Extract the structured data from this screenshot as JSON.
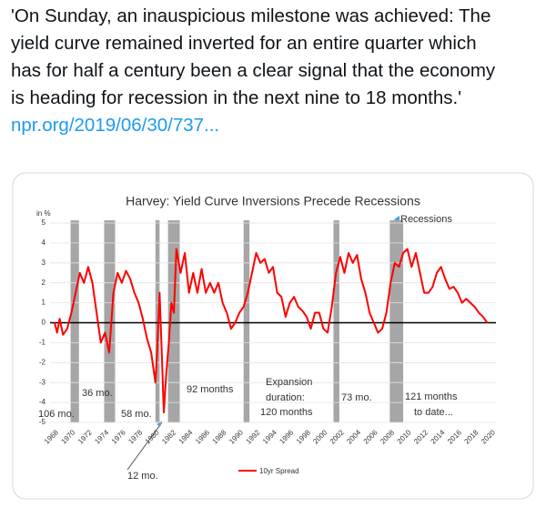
{
  "tweet": {
    "text_lines": [
      "'On Sunday, an inauspicious milestone was achieved: The",
      "yield curve remained inverted for an entire quarter which",
      "has for half a century been a clear signal that the economy",
      "is heading for recession in the next nine to 18 months.'"
    ],
    "link": "npr.org/2019/06/30/737..."
  },
  "chart_data": {
    "type": "line",
    "title": "Harvey: Yield Curve Inversions Precede Recessions",
    "y_label": "in %",
    "x": [
      1968,
      1968.3,
      1968.6,
      1969,
      1969.5,
      1970,
      1970.5,
      1971,
      1971.5,
      1972,
      1972.5,
      1973,
      1973.5,
      1974,
      1974.5,
      1975,
      1975.5,
      1976,
      1976.5,
      1977,
      1977.5,
      1978,
      1978.5,
      1979,
      1979.5,
      1980,
      1980.2,
      1980.5,
      1980.8,
      1981,
      1981.3,
      1981.6,
      1981.9,
      1982.2,
      1982.5,
      1983,
      1983.5,
      1984,
      1984.5,
      1985,
      1985.5,
      1986,
      1986.5,
      1987,
      1987.5,
      1988,
      1988.5,
      1989,
      1989.5,
      1990,
      1990.5,
      1991,
      1991.5,
      1992,
      1992.5,
      1993,
      1993.5,
      1994,
      1994.5,
      1995,
      1995.5,
      1996,
      1996.5,
      1997,
      1997.5,
      1998,
      1998.5,
      1999,
      1999.5,
      2000,
      2000.5,
      2001,
      2001.5,
      2002,
      2002.5,
      2003,
      2003.5,
      2004,
      2004.5,
      2005,
      2005.5,
      2006,
      2006.5,
      2007,
      2007.5,
      2008,
      2008.5,
      2009,
      2009.5,
      2010,
      2010.5,
      2011,
      2011.5,
      2012,
      2012.5,
      2013,
      2013.5,
      2014,
      2014.5,
      2015,
      2015.5,
      2016,
      2016.5,
      2017,
      2017.5,
      2018,
      2018.5,
      2019,
      2019.5
    ],
    "series": [
      {
        "name": "10yr Spread",
        "color": "#ff0000",
        "values": [
          0.0,
          -0.5,
          0.2,
          -0.6,
          -0.3,
          0.5,
          1.5,
          2.5,
          2.0,
          2.8,
          2.0,
          0.5,
          -1.0,
          -0.5,
          -1.5,
          1.5,
          2.5,
          2.0,
          2.6,
          2.2,
          1.5,
          1.0,
          0.2,
          -0.8,
          -1.5,
          -3.0,
          -1.5,
          1.5,
          -2.0,
          -4.5,
          -2.5,
          -1.0,
          1.0,
          0.5,
          3.7,
          2.5,
          3.5,
          1.5,
          2.5,
          1.5,
          2.7,
          1.5,
          2.0,
          1.5,
          2.0,
          1.0,
          0.5,
          -0.3,
          0.0,
          0.5,
          0.8,
          1.5,
          2.5,
          3.5,
          3.0,
          3.2,
          2.5,
          2.8,
          1.5,
          1.3,
          0.3,
          1.0,
          1.3,
          0.8,
          0.6,
          0.3,
          -0.3,
          0.5,
          0.5,
          -0.3,
          -0.5,
          0.8,
          2.5,
          3.3,
          2.5,
          3.5,
          3.0,
          3.4,
          2.2,
          1.5,
          0.5,
          0.0,
          -0.5,
          -0.3,
          0.5,
          2.0,
          3.0,
          2.8,
          3.5,
          3.7,
          2.8,
          3.5,
          2.5,
          1.5,
          1.5,
          1.8,
          2.5,
          2.8,
          2.2,
          1.7,
          1.8,
          1.5,
          1.0,
          1.2,
          1.0,
          0.8,
          0.5,
          0.3,
          0.0
        ]
      }
    ],
    "recessions": [
      [
        1969.9,
        1970.9
      ],
      [
        1973.9,
        1975.2
      ],
      [
        1980.0,
        1980.5
      ],
      [
        1981.5,
        1982.9
      ],
      [
        1990.5,
        1991.2
      ],
      [
        2001.2,
        2001.9
      ],
      [
        2007.9,
        2009.5
      ]
    ],
    "recession_label": "Recessions",
    "annotations": [
      "106 mo.",
      "36 mo.",
      "58 mo.",
      "12 mo.",
      "92 months",
      "Expansion",
      "duration:",
      "120 months",
      "73 mo.",
      "121 months",
      "to date..."
    ],
    "xlim": [
      1968,
      2020
    ],
    "xticks": [
      1968,
      1970,
      1972,
      1974,
      1976,
      1978,
      1980,
      1982,
      1984,
      1986,
      1988,
      1990,
      1992,
      1994,
      1996,
      1998,
      2000,
      2002,
      2004,
      2006,
      2008,
      2010,
      2012,
      2014,
      2016,
      2018,
      2020
    ],
    "ylim": [
      -5,
      5
    ],
    "yticks": [
      5,
      4,
      3,
      2,
      1,
      0,
      -1,
      -2,
      -3,
      -4,
      -5
    ],
    "grid": true
  }
}
